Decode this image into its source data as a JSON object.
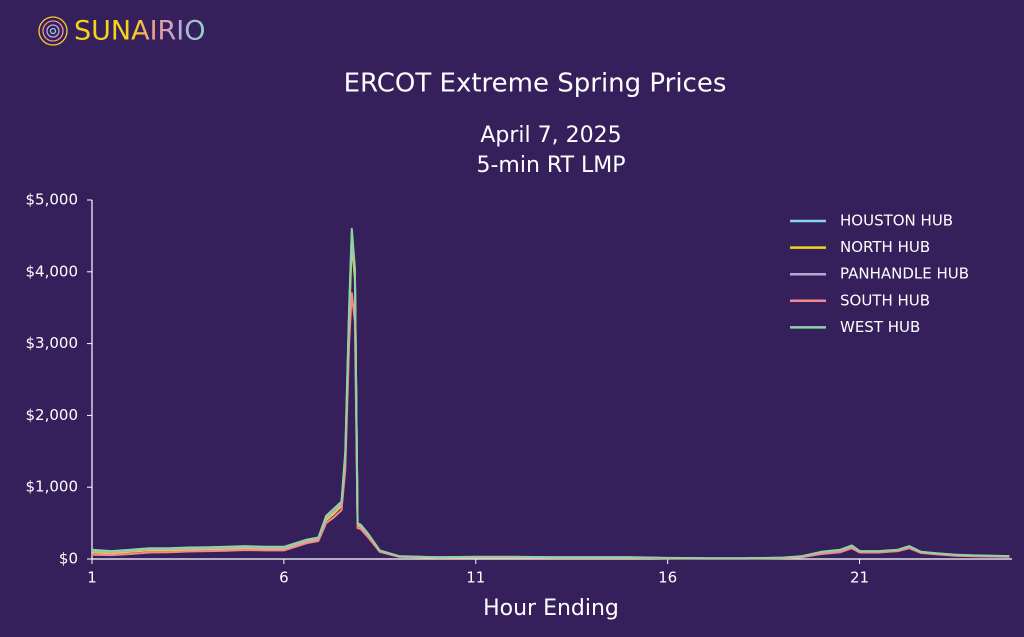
{
  "logo": "SUNAIRIO",
  "chart_data": {
    "type": "line",
    "title": "ERCOT Extreme Spring Prices",
    "subtitle": [
      "April 7, 2025",
      "5-min RT LMP"
    ],
    "x_label": "Hour Ending",
    "x": [
      1,
      1.5,
      2,
      2.5,
      3,
      3.5,
      4,
      4.5,
      5,
      5.5,
      6,
      6.3,
      6.6,
      6.9,
      7.1,
      7.3,
      7.5,
      7.6,
      7.7,
      7.77,
      7.85,
      7.92,
      8,
      8.2,
      8.5,
      9,
      10,
      11,
      12,
      13,
      14,
      15,
      16,
      17,
      18,
      19,
      19.5,
      20,
      20.5,
      20.8,
      21,
      21.5,
      22,
      22.3,
      22.6,
      23,
      23.5,
      24,
      24.9
    ],
    "series": [
      {
        "name": "HOUSTON HUB",
        "color": "#86d3e8",
        "values": [
          100,
          90,
          110,
          130,
          130,
          140,
          145,
          150,
          160,
          150,
          150,
          200,
          250,
          280,
          560,
          650,
          760,
          1400,
          3400,
          4550,
          4000,
          480,
          460,
          330,
          110,
          35,
          22,
          25,
          25,
          22,
          22,
          22,
          12,
          8,
          8,
          15,
          30,
          80,
          110,
          170,
          100,
          100,
          120,
          170,
          95,
          75,
          55,
          45,
          35
        ]
      },
      {
        "name": "NORTH HUB",
        "color": "#f3d31c",
        "values": [
          90,
          80,
          100,
          120,
          120,
          130,
          135,
          140,
          150,
          140,
          140,
          190,
          240,
          270,
          540,
          630,
          740,
          1350,
          3300,
          4400,
          3900,
          470,
          450,
          320,
          105,
          33,
          20,
          24,
          24,
          20,
          20,
          20,
          11,
          7,
          7,
          14,
          28,
          75,
          105,
          160,
          95,
          95,
          115,
          160,
          90,
          70,
          50,
          42,
          33
        ]
      },
      {
        "name": "PANHANDLE HUB",
        "color": "#b9a9d8",
        "values": [
          110,
          95,
          115,
          135,
          135,
          145,
          150,
          155,
          165,
          155,
          155,
          205,
          255,
          285,
          570,
          660,
          770,
          1420,
          3420,
          4500,
          4000,
          485,
          465,
          335,
          112,
          36,
          23,
          26,
          26,
          23,
          23,
          23,
          13,
          9,
          9,
          17,
          35,
          90,
          120,
          180,
          105,
          105,
          125,
          175,
          98,
          78,
          58,
          48,
          38
        ]
      },
      {
        "name": "SOUTH HUB",
        "color": "#f08a8c",
        "values": [
          60,
          55,
          70,
          90,
          95,
          105,
          110,
          115,
          125,
          120,
          120,
          170,
          220,
          250,
          500,
          580,
          680,
          1250,
          3000,
          3700,
          3300,
          430,
          420,
          300,
          100,
          30,
          18,
          22,
          22,
          18,
          18,
          18,
          10,
          6,
          6,
          12,
          25,
          70,
          95,
          150,
          90,
          90,
          110,
          150,
          85,
          65,
          45,
          38,
          30
        ]
      },
      {
        "name": "WEST HUB",
        "color": "#8fd3a0",
        "values": [
          130,
          110,
          130,
          150,
          150,
          160,
          165,
          170,
          180,
          170,
          170,
          220,
          270,
          300,
          600,
          700,
          800,
          1500,
          3500,
          4600,
          4050,
          500,
          480,
          350,
          120,
          40,
          25,
          30,
          30,
          25,
          25,
          25,
          15,
          10,
          10,
          20,
          40,
          100,
          130,
          190,
          110,
          110,
          130,
          180,
          100,
          80,
          60,
          50,
          40
        ]
      }
    ],
    "xlim": [
      1,
      24.92
    ],
    "xticks": [
      1,
      6,
      11,
      16,
      21
    ],
    "ylim": [
      0,
      5000
    ],
    "yticks": [
      {
        "value": 0,
        "label": "$0"
      },
      {
        "value": 1000,
        "label": "$1,000"
      },
      {
        "value": 2000,
        "label": "$2,000"
      },
      {
        "value": 3000,
        "label": "$3,000"
      },
      {
        "value": 4000,
        "label": "$4,000"
      },
      {
        "value": 5000,
        "label": "$5,000"
      }
    ],
    "legend": "upper right"
  }
}
